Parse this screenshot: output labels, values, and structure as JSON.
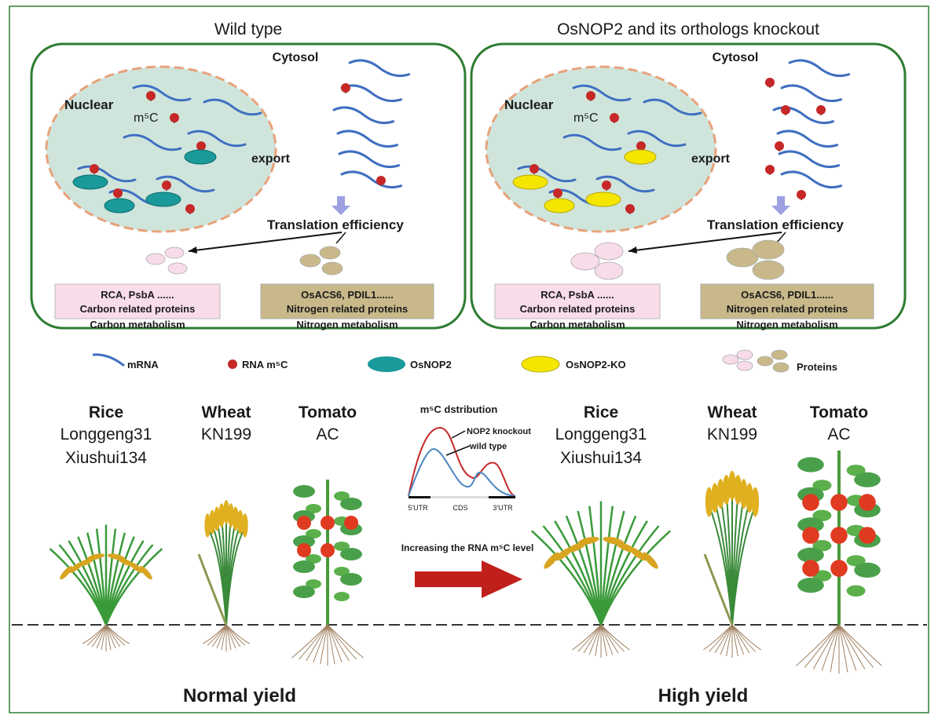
{
  "panels": [
    {
      "title": "Wild type",
      "cytosol": "Cytosol",
      "nuclear": "Nuclear",
      "m5c": "m⁵C",
      "export": "export",
      "translation": "Translation efficiency",
      "carbon_box": [
        "RCA, PsbA ......",
        "Carbon related proteins"
      ],
      "carbon_label": "Carbon metabolism",
      "nitrogen_box": [
        "OsACS6, PDIL1......",
        "Nitrogen related proteins"
      ],
      "nitrogen_label": "Nitrogen metabolism",
      "enzyme": "OsNOP2"
    },
    {
      "title": "OsNOP2 and its orthologs knockout",
      "cytosol": "Cytosol",
      "nuclear": "Nuclear",
      "m5c": "m⁵C",
      "export": "export",
      "translation": "Translation efficiency",
      "carbon_box": [
        "RCA, PsbA ......",
        "Carbon related proteins"
      ],
      "carbon_label": "Carbon metabolism",
      "nitrogen_box": [
        "OsACS6, PDIL1......",
        "Nitrogen related proteins"
      ],
      "nitrogen_label": "Nitrogen metabolism",
      "enzyme": "OsNOP2-KO"
    }
  ],
  "legend": {
    "mrna": "mRNA",
    "m5c": "RNA m⁵C",
    "osnop2": "OsNOP2",
    "osnop2_ko": "OsNOP2-KO",
    "proteins": "Proteins"
  },
  "groups": [
    {
      "species": [
        {
          "name": "Rice",
          "cultivars": [
            "Longgeng31",
            "Xiushui134"
          ]
        },
        {
          "name": "Wheat",
          "cultivars": [
            "KN199"
          ]
        },
        {
          "name": "Tomato",
          "cultivars": [
            "AC"
          ]
        }
      ],
      "yield": "Normal yield"
    },
    {
      "species": [
        {
          "name": "Rice",
          "cultivars": [
            "Longgeng31",
            "Xiushui134"
          ]
        },
        {
          "name": "Wheat",
          "cultivars": [
            "KN199"
          ]
        },
        {
          "name": "Tomato",
          "cultivars": [
            "AC"
          ]
        }
      ],
      "yield": "High yield"
    }
  ],
  "distribution": {
    "title": "m⁵C dstribution",
    "series": [
      "NOP2 knockout",
      "wild type"
    ],
    "regions": [
      "5'UTR",
      "CDS",
      "3'UTR"
    ]
  },
  "arrow_label": "Increasing the RNA m⁵C level",
  "colors": {
    "panel_border": "#2e7d32",
    "mrna": "#3f6fc1",
    "m5c": "#c62828",
    "osnop2": "#1a9a9a",
    "osnop2_ko": "#f5e600",
    "nucleus": "#cfe5dc",
    "nucleus_border": "#e8a27a",
    "carbon": "#f8dcea",
    "nitrogen": "#c9b98a",
    "arrow": "#c0201c"
  }
}
